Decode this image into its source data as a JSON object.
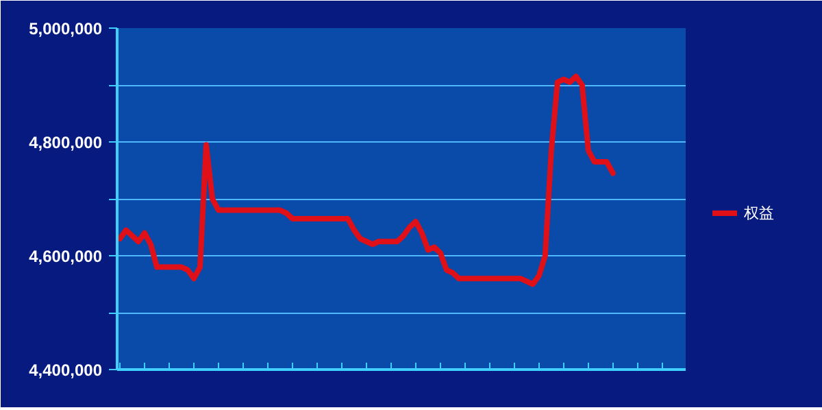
{
  "chart_data": {
    "type": "line",
    "categories": [
      null,
      null,
      null,
      null,
      null,
      null,
      null,
      null,
      null,
      null,
      null,
      null,
      null,
      null,
      null,
      null,
      null,
      null,
      null,
      null,
      null,
      null,
      null,
      null,
      null,
      null,
      null,
      null,
      null,
      null,
      null,
      null,
      null,
      null,
      null,
      null,
      null,
      null,
      null,
      null,
      null,
      null,
      null,
      null,
      null,
      null,
      null,
      null,
      null,
      null,
      null,
      null,
      null,
      null,
      null,
      null,
      null,
      null,
      null,
      null,
      null,
      null,
      null,
      null,
      null,
      null,
      null,
      null,
      null,
      null,
      null,
      null,
      null,
      null,
      null,
      null,
      null,
      null,
      null,
      null,
      null,
      null,
      null,
      null,
      null,
      null,
      null,
      null,
      null,
      null,
      null,
      null
    ],
    "series": [
      {
        "name": "权益",
        "color": "#e01018",
        "values": [
          4630000,
          4645000,
          4635000,
          4625000,
          4640000,
          4620000,
          4580000,
          4580000,
          4580000,
          4580000,
          4580000,
          4575000,
          4560000,
          4580000,
          4795000,
          4700000,
          4680000,
          4680000,
          4680000,
          4680000,
          4680000,
          4680000,
          4680000,
          4680000,
          4680000,
          4680000,
          4680000,
          4675000,
          4665000,
          4665000,
          4665000,
          4665000,
          4665000,
          4665000,
          4665000,
          4665000,
          4665000,
          4665000,
          4645000,
          4630000,
          4625000,
          4620000,
          4625000,
          4625000,
          4625000,
          4625000,
          4635000,
          4650000,
          4660000,
          4640000,
          4610000,
          4615000,
          4605000,
          4575000,
          4570000,
          4560000,
          4560000,
          4560000,
          4560000,
          4560000,
          4560000,
          4560000,
          4560000,
          4560000,
          4560000,
          4560000,
          4555000,
          4550000,
          4565000,
          4600000,
          4785000,
          4905000,
          4910000,
          4905000,
          4915000,
          4900000,
          4785000,
          4765000,
          4765000,
          4765000,
          4745000,
          null,
          null,
          null,
          null,
          null,
          null,
          null,
          null,
          null,
          null,
          null
        ]
      }
    ],
    "ylim": [
      4400000,
      5000000
    ],
    "yticks": [
      {
        "value": 4400000,
        "label": "4,400,000"
      },
      {
        "value": 4500000,
        "label": null
      },
      {
        "value": 4600000,
        "label": "4,600,000"
      },
      {
        "value": 4700000,
        "label": null
      },
      {
        "value": 4800000,
        "label": "4,800,000"
      },
      {
        "value": 4900000,
        "label": null
      },
      {
        "value": 5000000,
        "label": "5,000,000"
      }
    ],
    "grid": "y",
    "legend": "right",
    "tick_labels": "y",
    "line_style": "solid",
    "marker": "none"
  }
}
